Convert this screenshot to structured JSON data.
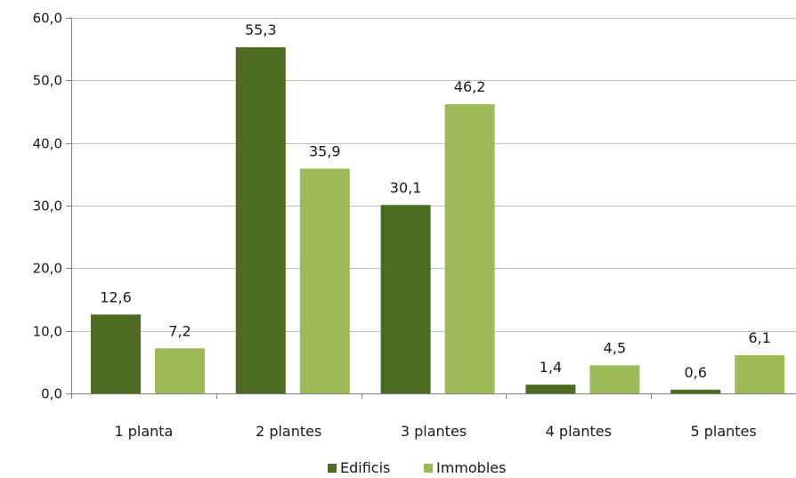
{
  "chart_data": {
    "type": "bar",
    "categories": [
      "1 planta",
      "2 plantes",
      "3 plantes",
      "4 plantes",
      "5 plantes"
    ],
    "series": [
      {
        "name": "Edificis",
        "values": [
          12.6,
          55.3,
          30.1,
          1.4,
          0.6
        ],
        "labels": [
          "12,6",
          "55,3",
          "30,1",
          "1,4",
          "0,6"
        ],
        "color": "#4e6b22"
      },
      {
        "name": "Immobles",
        "values": [
          7.2,
          35.9,
          46.2,
          4.5,
          6.1
        ],
        "labels": [
          "7,2",
          "35,9",
          "46,2",
          "4,5",
          "6,1"
        ],
        "color": "#9bbb59"
      }
    ],
    "ylim": [
      0,
      60
    ],
    "yticks": [
      0,
      10,
      20,
      30,
      40,
      50,
      60
    ],
    "ytick_labels": [
      "0,0",
      "10,0",
      "20,0",
      "30,0",
      "40,0",
      "50,0",
      "60,0"
    ],
    "grid": true,
    "legend_position": "bottom"
  }
}
